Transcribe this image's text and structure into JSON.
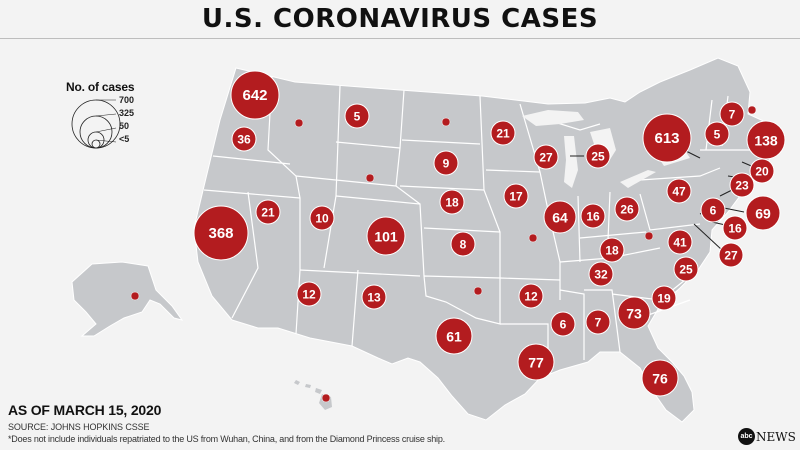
{
  "title": "U.S. CORONAVIRUS CASES",
  "legend": {
    "title": "No. of cases",
    "levels": [
      "700",
      "325",
      "50",
      "<5"
    ]
  },
  "footer": {
    "as_of": "AS OF MARCH 15, 2020",
    "source": "SOURCE: JOHNS HOPKINS CSSE",
    "note": "*Does not include individuals repatriated to the US from Wuhan, China, and from the Diamond Princess cruise ship."
  },
  "logo": {
    "disc": "abc",
    "text": "NEWS"
  },
  "colors": {
    "bubble": "#b31c1f",
    "land": "#c6c8cb",
    "state_border": "#ffffff",
    "background": "#f3f3f3"
  },
  "map": {
    "states": [
      {
        "state": "Washington",
        "label": "642"
      },
      {
        "state": "Oregon",
        "label": "36"
      },
      {
        "state": "California",
        "label": "368"
      },
      {
        "state": "Nevada",
        "label": "21"
      },
      {
        "state": "Idaho",
        "label": ""
      },
      {
        "state": "Montana",
        "label": "5"
      },
      {
        "state": "Wyoming",
        "label": ""
      },
      {
        "state": "Utah",
        "label": "10"
      },
      {
        "state": "Colorado",
        "label": "101"
      },
      {
        "state": "Arizona",
        "label": "12"
      },
      {
        "state": "New Mexico",
        "label": "13"
      },
      {
        "state": "North Dakota",
        "label": ""
      },
      {
        "state": "South Dakota",
        "label": "9"
      },
      {
        "state": "Nebraska",
        "label": "18"
      },
      {
        "state": "Kansas",
        "label": "8"
      },
      {
        "state": "Oklahoma",
        "label": ""
      },
      {
        "state": "Texas",
        "label": "61"
      },
      {
        "state": "Minnesota",
        "label": "21"
      },
      {
        "state": "Iowa",
        "label": "17"
      },
      {
        "state": "Missouri",
        "label": ""
      },
      {
        "state": "Arkansas",
        "label": "12"
      },
      {
        "state": "Louisiana",
        "label": "77"
      },
      {
        "state": "Wisconsin",
        "label": "27"
      },
      {
        "state": "Illinois",
        "label": "64"
      },
      {
        "state": "Michigan",
        "label": "25"
      },
      {
        "state": "Indiana",
        "label": "16"
      },
      {
        "state": "Ohio",
        "label": "26"
      },
      {
        "state": "Kentucky",
        "label": "18"
      },
      {
        "state": "Tennessee",
        "label": "32"
      },
      {
        "state": "Mississippi",
        "label": "6"
      },
      {
        "state": "Alabama",
        "label": "7"
      },
      {
        "state": "Georgia",
        "label": "73"
      },
      {
        "state": "Florida",
        "label": "76"
      },
      {
        "state": "South Carolina",
        "label": "19"
      },
      {
        "state": "North Carolina",
        "label": "25"
      },
      {
        "state": "Virginia",
        "label": "41"
      },
      {
        "state": "West Virginia",
        "label": ""
      },
      {
        "state": "Pennsylvania",
        "label": "47"
      },
      {
        "state": "New York",
        "label": "613"
      },
      {
        "state": "Vermont",
        "label": "5"
      },
      {
        "state": "New Hampshire",
        "label": "7"
      },
      {
        "state": "Maine",
        "label": ""
      },
      {
        "state": "Massachusetts",
        "label": "138"
      },
      {
        "state": "Rhode Island",
        "label": "20"
      },
      {
        "state": "Connecticut",
        "label": "23"
      },
      {
        "state": "New Jersey",
        "label": "69"
      },
      {
        "state": "Delaware",
        "label": "6"
      },
      {
        "state": "Maryland",
        "label": "16"
      },
      {
        "state": "District of Columbia",
        "label": "27"
      },
      {
        "state": "Alaska",
        "label": ""
      },
      {
        "state": "Hawaii",
        "label": ""
      }
    ]
  }
}
